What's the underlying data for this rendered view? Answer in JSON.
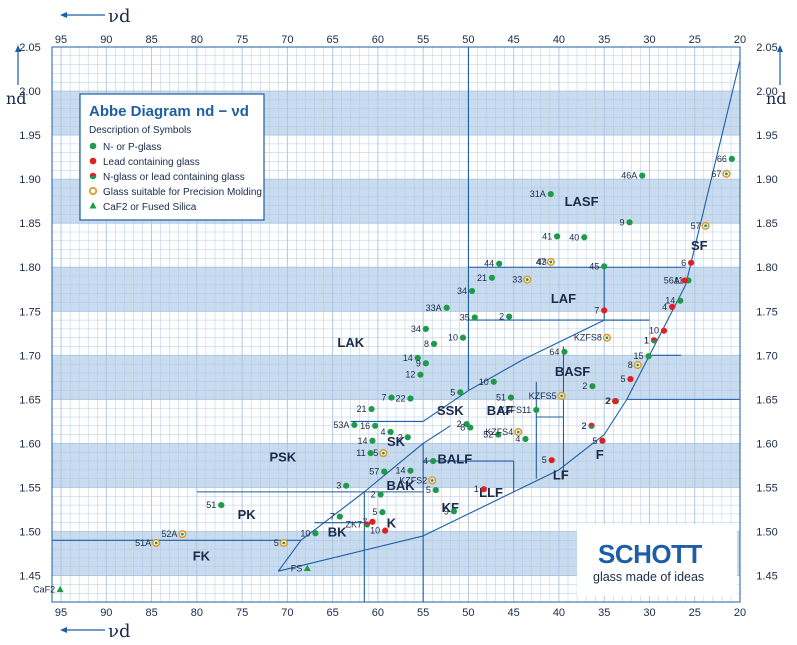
{
  "colors": {
    "band": "#c9dcef",
    "grid": "#a9c4e0",
    "line": "#1d5ea6",
    "n_glass": "#1e9a4a",
    "lead_glass": "#e02020",
    "precision_ring": "#e09a30",
    "brand": "#1d5ea6"
  },
  "legend": {
    "title": "Abbe Diagram",
    "formula": "nd − νd",
    "subtitle": "Description of Symbols",
    "items": [
      {
        "symbol": "n",
        "label": "N- or P-glass"
      },
      {
        "symbol": "pb",
        "label": "Lead containing glass"
      },
      {
        "symbol": "both",
        "label": "N-glass or lead containing glass"
      },
      {
        "symbol": "ring",
        "label": "Glass suitable for Precision Molding"
      },
      {
        "symbol": "tri",
        "label": "CaF2 or Fused Silica"
      }
    ]
  },
  "logo": {
    "brand": "SCHOTT",
    "tagline": "glass made of ideas"
  },
  "chart_data": {
    "type": "scatter",
    "title": "Abbe Diagram nd − νd",
    "xlabel": "νd",
    "ylabel": "nd",
    "xlim": [
      96,
      20
    ],
    "ylim": [
      1.42,
      2.05
    ],
    "x_ticks": [
      95,
      90,
      85,
      80,
      75,
      70,
      65,
      60,
      55,
      50,
      45,
      40,
      35,
      30,
      25,
      20
    ],
    "y_ticks": [
      1.45,
      1.5,
      1.55,
      1.6,
      1.65,
      1.7,
      1.75,
      1.8,
      1.85,
      1.9,
      1.95,
      2.0,
      2.05
    ],
    "y_tick_labels": [
      "1.45",
      "1.50",
      "1.55",
      "1.60",
      "1.65",
      "1.70",
      "1.75",
      "1.80",
      "1.85",
      "1.90",
      "1.95",
      "2.00",
      "2.05"
    ],
    "x_axis_note_top": "νd",
    "x_axis_note_bottom": "νd",
    "y_axis_note": "nd",
    "grid": true,
    "legend_position": "top-left",
    "regions": [
      {
        "name": "LASF",
        "x": 37.5,
        "y": 1.875
      },
      {
        "name": "SF",
        "x": 24.5,
        "y": 1.825
      },
      {
        "name": "LAF",
        "x": 39.5,
        "y": 1.765
      },
      {
        "name": "LAK",
        "x": 63,
        "y": 1.715
      },
      {
        "name": "BASF",
        "x": 38.5,
        "y": 1.682
      },
      {
        "name": "SSK",
        "x": 52,
        "y": 1.638
      },
      {
        "name": "BAF",
        "x": 46.5,
        "y": 1.638
      },
      {
        "name": "SK",
        "x": 58,
        "y": 1.603
      },
      {
        "name": "PSK",
        "x": 70.5,
        "y": 1.585
      },
      {
        "name": "BALF",
        "x": 51.5,
        "y": 1.583
      },
      {
        "name": "F",
        "x": 35.5,
        "y": 1.588
      },
      {
        "name": "BAK",
        "x": 57.5,
        "y": 1.553
      },
      {
        "name": "LF",
        "x": 39.8,
        "y": 1.565
      },
      {
        "name": "LLF",
        "x": 47.5,
        "y": 1.545
      },
      {
        "name": "PK",
        "x": 74.5,
        "y": 1.52
      },
      {
        "name": "KF",
        "x": 52,
        "y": 1.528
      },
      {
        "name": "K",
        "x": 58.5,
        "y": 1.51
      },
      {
        "name": "BK",
        "x": 64.5,
        "y": 1.5
      },
      {
        "name": "FK",
        "x": 79.5,
        "y": 1.473
      }
    ],
    "series": [
      {
        "name": "N- or P-glass",
        "points": [
          {
            "label": "66",
            "x": 20.9,
            "y": 1.923
          },
          {
            "label": "46A",
            "x": 30.8,
            "y": 1.904
          },
          {
            "label": "31A",
            "x": 40.9,
            "y": 1.883
          },
          {
            "label": "9",
            "x": 32.2,
            "y": 1.851
          },
          {
            "label": "41",
            "x": 40.2,
            "y": 1.835
          },
          {
            "label": "40",
            "x": 37.2,
            "y": 1.834
          },
          {
            "label": "44",
            "x": 46.6,
            "y": 1.804
          },
          {
            "label": "43",
            "x": 40.8,
            "y": 1.806
          },
          {
            "label": "45",
            "x": 35.0,
            "y": 1.801
          },
          {
            "label": "11",
            "x": 25.7,
            "y": 1.785
          },
          {
            "label": "21",
            "x": 47.4,
            "y": 1.788
          },
          {
            "label": "34",
            "x": 49.6,
            "y": 1.773
          },
          {
            "label": "33A",
            "x": 52.4,
            "y": 1.754
          },
          {
            "label": "35",
            "x": 49.3,
            "y": 1.743
          },
          {
            "label": "2",
            "x": 45.5,
            "y": 1.744
          },
          {
            "label": "34",
            "x": 54.7,
            "y": 1.73
          },
          {
            "label": "10",
            "x": 50.6,
            "y": 1.72
          },
          {
            "label": "8",
            "x": 53.8,
            "y": 1.713
          },
          {
            "label": "14",
            "x": 55.6,
            "y": 1.697
          },
          {
            "label": "9",
            "x": 54.7,
            "y": 1.691
          },
          {
            "label": "12",
            "x": 55.3,
            "y": 1.678
          },
          {
            "label": "64",
            "x": 39.4,
            "y": 1.704
          },
          {
            "label": "14",
            "x": 26.6,
            "y": 1.762
          },
          {
            "label": "15",
            "x": 30.1,
            "y": 1.699
          },
          {
            "label": "10",
            "x": 47.2,
            "y": 1.67
          },
          {
            "label": "7",
            "x": 58.5,
            "y": 1.652
          },
          {
            "label": "22",
            "x": 56.4,
            "y": 1.651
          },
          {
            "label": "5",
            "x": 50.9,
            "y": 1.658
          },
          {
            "label": "51",
            "x": 45.3,
            "y": 1.652
          },
          {
            "label": "KZFS11",
            "x": 42.5,
            "y": 1.638
          },
          {
            "label": "21",
            "x": 60.7,
            "y": 1.639
          },
          {
            "label": "53A",
            "x": 62.6,
            "y": 1.621
          },
          {
            "label": "16",
            "x": 60.3,
            "y": 1.62
          },
          {
            "label": "4",
            "x": 58.6,
            "y": 1.613
          },
          {
            "label": "2",
            "x": 56.7,
            "y": 1.607
          },
          {
            "label": "2",
            "x": 50.2,
            "y": 1.622
          },
          {
            "label": "8",
            "x": 49.8,
            "y": 1.618
          },
          {
            "label": "52",
            "x": 46.7,
            "y": 1.61
          },
          {
            "label": "4",
            "x": 43.7,
            "y": 1.605
          },
          {
            "label": "14",
            "x": 60.6,
            "y": 1.603
          },
          {
            "label": "11",
            "x": 60.8,
            "y": 1.589
          },
          {
            "label": "57",
            "x": 59.3,
            "y": 1.568
          },
          {
            "label": "14",
            "x": 56.4,
            "y": 1.569
          },
          {
            "label": "4",
            "x": 53.9,
            "y": 1.58
          },
          {
            "label": "3",
            "x": 63.5,
            "y": 1.552
          },
          {
            "label": "2",
            "x": 59.7,
            "y": 1.542
          },
          {
            "label": "5",
            "x": 53.6,
            "y": 1.547
          },
          {
            "label": "7",
            "x": 64.2,
            "y": 1.517
          },
          {
            "label": "5",
            "x": 59.5,
            "y": 1.522
          },
          {
            "label": "9",
            "x": 51.6,
            "y": 1.523
          },
          {
            "label": "10",
            "x": 66.9,
            "y": 1.498
          },
          {
            "label": "2",
            "x": 36.3,
            "y": 1.665
          },
          {
            "label": "2",
            "x": 33.7,
            "y": 1.648
          },
          {
            "label": "51",
            "x": 77.3,
            "y": 1.53
          }
        ]
      },
      {
        "name": "Lead containing glass",
        "points": [
          {
            "label": "6",
            "x": 25.4,
            "y": 1.805
          },
          {
            "label": "56A",
            "x": 26.1,
            "y": 1.785
          },
          {
            "label": "4",
            "x": 27.5,
            "y": 1.755
          },
          {
            "label": "7",
            "x": 35.0,
            "y": 1.751
          },
          {
            "label": "10",
            "x": 28.4,
            "y": 1.728
          },
          {
            "label": "1",
            "x": 29.5,
            "y": 1.717
          },
          {
            "label": "5",
            "x": 32.1,
            "y": 1.673
          },
          {
            "label": "2",
            "x": 33.8,
            "y": 1.648
          },
          {
            "label": "2",
            "x": 36.4,
            "y": 1.62
          },
          {
            "label": "5",
            "x": 35.2,
            "y": 1.603
          },
          {
            "label": "5",
            "x": 40.8,
            "y": 1.581
          },
          {
            "label": "1",
            "x": 48.3,
            "y": 1.548
          },
          {
            "label": "7",
            "x": 60.6,
            "y": 1.511
          },
          {
            "label": "10",
            "x": 59.2,
            "y": 1.501
          }
        ]
      },
      {
        "name": "Glass suitable for Precision Molding",
        "points": [
          {
            "label": "67",
            "x": 21.5,
            "y": 1.906
          },
          {
            "label": "57",
            "x": 23.8,
            "y": 1.847
          },
          {
            "label": "47",
            "x": 40.9,
            "y": 1.806
          },
          {
            "label": "33",
            "x": 43.5,
            "y": 1.786
          },
          {
            "label": "KZFS8",
            "x": 34.7,
            "y": 1.72
          },
          {
            "label": "8",
            "x": 31.3,
            "y": 1.689
          },
          {
            "label": "KZFS5",
            "x": 39.7,
            "y": 1.654
          },
          {
            "label": "KZFS4",
            "x": 44.5,
            "y": 1.613
          },
          {
            "label": "5",
            "x": 59.4,
            "y": 1.589
          },
          {
            "label": "KZFS2",
            "x": 54.0,
            "y": 1.558
          },
          {
            "label": "52A",
            "x": 81.6,
            "y": 1.497
          },
          {
            "label": "51A",
            "x": 84.5,
            "y": 1.487
          },
          {
            "label": "5",
            "x": 70.4,
            "y": 1.487
          }
        ]
      },
      {
        "name": "N-glass or lead containing glass",
        "points": [
          {
            "label": "2",
            "x": 36.4,
            "y": 1.62
          },
          {
            "label": "1",
            "x": 29.5,
            "y": 1.717
          },
          {
            "label": "ZK7",
            "x": 61.2,
            "y": 1.508
          }
        ]
      },
      {
        "name": "CaF2 or Fused Silica",
        "points": [
          {
            "label": "CaF2",
            "x": 95.1,
            "y": 1.434
          },
          {
            "label": "FS",
            "x": 67.8,
            "y": 1.458
          }
        ]
      }
    ]
  }
}
